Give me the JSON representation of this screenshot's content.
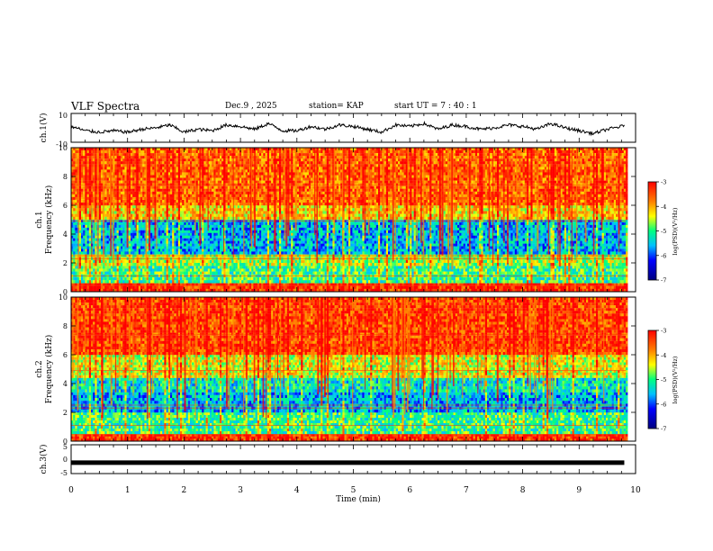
{
  "header": {
    "title": "VLF Spectra",
    "date": "Dec.9  , 2025",
    "station": "station= KAP",
    "start": "start  UT  =   7 : 40 : 1"
  },
  "chart_data": [
    {
      "type": "line",
      "name": "ch1-voltage",
      "ylabel": "ch.1(V)",
      "ylim": [
        -10,
        10
      ],
      "ytick_labels": [
        "10",
        "-10"
      ],
      "xlim": [
        0,
        10
      ],
      "description_series": "voltage waveform around -2 to 2 V",
      "x": [
        0.0,
        0.25,
        0.5,
        0.75,
        1.0,
        1.25,
        1.5,
        1.75,
        2.0,
        2.25,
        2.5,
        2.75,
        3.0,
        3.25,
        3.5,
        3.75,
        4.0,
        4.25,
        4.5,
        4.75,
        5.0,
        5.25,
        5.5,
        5.75,
        6.0,
        6.25,
        6.5,
        6.75,
        7.0,
        7.25,
        7.5,
        7.75,
        8.0,
        8.25,
        8.5,
        8.75,
        9.0,
        9.25,
        9.5,
        9.75,
        9.8
      ],
      "y": [
        1,
        -2,
        -3,
        -2,
        -3,
        -1,
        0,
        2,
        -3,
        -1,
        -2,
        2,
        1,
        -1,
        3,
        -2,
        -2,
        1,
        -1,
        2,
        1,
        -1,
        -3,
        2,
        1,
        3,
        -1,
        2,
        1,
        -1,
        0,
        2,
        1,
        -1,
        3,
        0,
        -2,
        -4,
        -1,
        1,
        2
      ]
    },
    {
      "type": "heatmap",
      "name": "ch1-spectrogram",
      "ylabel": "ch.1\nFrequency  (kHz)",
      "ylim": [
        0,
        10
      ],
      "ytick_labels": [
        "0",
        "2",
        "4",
        "6",
        "8",
        "10"
      ],
      "xlim": [
        0,
        10
      ],
      "colorbar": {
        "label": "log(PSD)(V²/Hz)",
        "range": [
          -7,
          -3
        ],
        "tick_labels": [
          "-3",
          "-4",
          "-5",
          "-6",
          "-7"
        ]
      },
      "band_levels": [
        {
          "f0": 0.0,
          "f1": 0.6,
          "level": -3.3
        },
        {
          "f0": 0.6,
          "f1": 1.8,
          "level": -5.0
        },
        {
          "f0": 1.8,
          "f1": 2.6,
          "level": -4.6
        },
        {
          "f0": 2.6,
          "f1": 5.0,
          "level": -5.6
        },
        {
          "f0": 5.0,
          "f1": 6.0,
          "level": -4.2
        },
        {
          "f0": 6.0,
          "f1": 10.0,
          "level": -3.6
        }
      ]
    },
    {
      "type": "heatmap",
      "name": "ch2-spectrogram",
      "ylabel": "ch.2\nFrequency  (kHz)",
      "ylim": [
        0,
        10
      ],
      "ytick_labels": [
        "0",
        "2",
        "4",
        "6",
        "8",
        "10"
      ],
      "xlim": [
        0,
        10
      ],
      "colorbar": {
        "label": "log(PSD)(V²/Hz)",
        "range": [
          -7,
          -3
        ],
        "tick_labels": [
          "-3",
          "-4",
          "-5",
          "-6",
          "-7"
        ]
      },
      "band_levels": [
        {
          "f0": 0.0,
          "f1": 0.5,
          "level": -3.3
        },
        {
          "f0": 0.5,
          "f1": 2.0,
          "level": -5.0
        },
        {
          "f0": 2.0,
          "f1": 3.4,
          "level": -5.6
        },
        {
          "f0": 3.4,
          "f1": 4.4,
          "level": -5.3
        },
        {
          "f0": 4.4,
          "f1": 6.0,
          "level": -4.4
        },
        {
          "f0": 6.0,
          "f1": 10.0,
          "level": -3.4
        }
      ]
    },
    {
      "type": "line",
      "name": "ch3-voltage",
      "ylabel": "ch.3(V)",
      "ylim": [
        -5,
        5
      ],
      "ytick_labels": [
        "5",
        "0",
        "-5"
      ],
      "xlim": [
        0,
        10
      ],
      "x": [
        0.0,
        9.8
      ],
      "y": [
        -1.2,
        -1.2
      ]
    }
  ],
  "xaxis": {
    "label": "Time  (min)",
    "tick_labels": [
      "0",
      "1",
      "2",
      "3",
      "4",
      "5",
      "6",
      "7",
      "8",
      "9",
      "10"
    ]
  }
}
